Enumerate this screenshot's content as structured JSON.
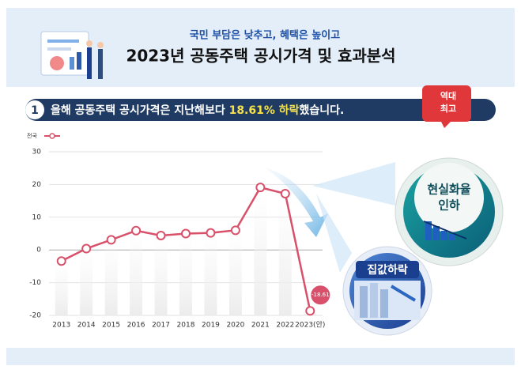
{
  "header": {
    "subtitle": "국민 부담은 낮추고, 혜택은 높이고",
    "title": "2023년 공동주택 공시가격 및 효과분석"
  },
  "headline": {
    "number": "1",
    "parts": [
      "올해 공동주택 공시가격은 지난해보다 ",
      "18.61% 하락",
      "했습니다."
    ]
  },
  "badge": {
    "lines": [
      "역대",
      "최고"
    ]
  },
  "callouts": [
    {
      "lines": [
        "현실화율",
        "인하"
      ]
    },
    {
      "lines": [
        "집값하락"
      ]
    }
  ],
  "chart_data": {
    "type": "line",
    "categories": [
      "2013",
      "2014",
      "2015",
      "2016",
      "2017",
      "2018",
      "2019",
      "2020",
      "2021",
      "2022",
      "2023(안)"
    ],
    "series": [
      {
        "name": "전국",
        "color": "#d9506a",
        "values": [
          -3.4,
          0.4,
          3.1,
          5.9,
          4.4,
          5.0,
          5.2,
          6.0,
          19.1,
          17.2,
          -18.61
        ],
        "value_labels": [
          null,
          null,
          null,
          null,
          null,
          null,
          null,
          null,
          null,
          null,
          "-18.61"
        ]
      }
    ],
    "ylim": [
      -20,
      30
    ],
    "yticks": [
      -20,
      -10,
      0,
      10,
      20,
      30
    ],
    "grid": true,
    "legend": "top-left"
  }
}
